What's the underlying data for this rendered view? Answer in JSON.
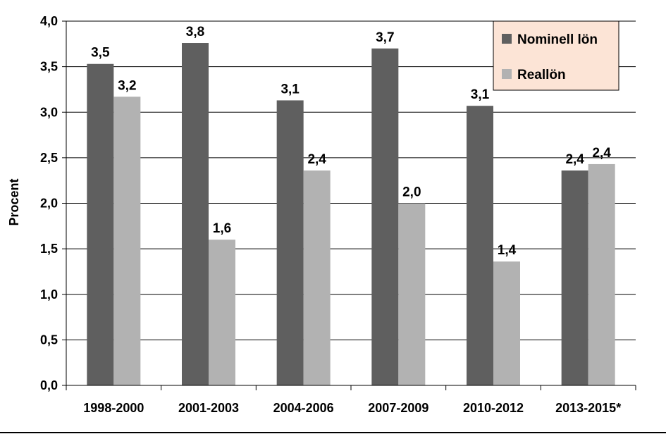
{
  "chart_data": {
    "type": "bar",
    "title": "",
    "xlabel": "",
    "ylabel": "Procent",
    "ylim": [
      0,
      4.0
    ],
    "ytick_step": 0.5,
    "y_tick_labels": [
      "0,0",
      "0,5",
      "1,0",
      "1,5",
      "2,0",
      "2,5",
      "3,0",
      "3,5",
      "4,0"
    ],
    "grid": true,
    "legend_position": "top-right",
    "categories": [
      "1998-2000",
      "2001-2003",
      "2004-2006",
      "2007-2009",
      "2010-2012",
      "2013-2015*"
    ],
    "series": [
      {
        "name": "Nominell lön",
        "color": "#5f5f5f",
        "values": [
          3.53,
          3.76,
          3.13,
          3.7,
          3.07,
          2.36
        ],
        "labels": [
          "3,5",
          "3,8",
          "3,1",
          "3,7",
          "3,1",
          "2,4"
        ]
      },
      {
        "name": "Reallön",
        "color": "#b2b2b2",
        "values": [
          3.17,
          1.6,
          2.36,
          2.0,
          1.36,
          2.43
        ],
        "labels": [
          "3,2",
          "1,6",
          "2,4",
          "2,0",
          "1,4",
          "2,4"
        ]
      }
    ],
    "legend_background": "#fce4d6"
  }
}
